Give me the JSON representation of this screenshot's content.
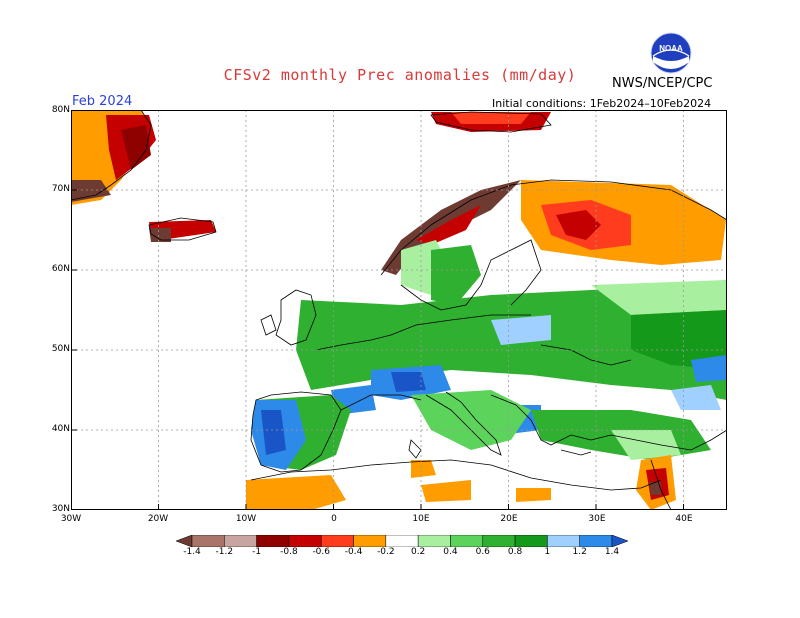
{
  "title": "CFSv2 monthly Prec anomalies (mm/day)",
  "month": "Feb 2024",
  "initial_conditions": "Initial conditions: 1Feb2024–10Feb2024",
  "organization": "NWS/NCEP/CPC",
  "logo_text": "NOAA",
  "map": {
    "lon_range": [
      -30,
      45
    ],
    "lat_range": [
      30,
      80
    ],
    "lat_labels": [
      "80N",
      "70N",
      "60N",
      "50N",
      "40N",
      "30N"
    ],
    "lon_labels": [
      "30W",
      "20W",
      "10W",
      "0",
      "10E",
      "20E",
      "30E",
      "40E"
    ],
    "grid": true
  },
  "colorbar": {
    "labels": [
      "-1.4",
      "-1.2",
      "-1",
      "-0.8",
      "-0.6",
      "-0.4",
      "-0.2",
      "0.2",
      "0.4",
      "0.6",
      "0.8",
      "1",
      "1.2",
      "1.4"
    ],
    "colors": [
      "#6e3b32",
      "#a9746a",
      "#c8a5a0",
      "#8f0000",
      "#c40000",
      "#ff3c1e",
      "#ff9c00",
      "#ffffff",
      "#a8f0a0",
      "#5cd45c",
      "#30b030",
      "#15991a",
      "#9fd0ff",
      "#2e8ae8",
      "#1a55c8"
    ]
  }
}
